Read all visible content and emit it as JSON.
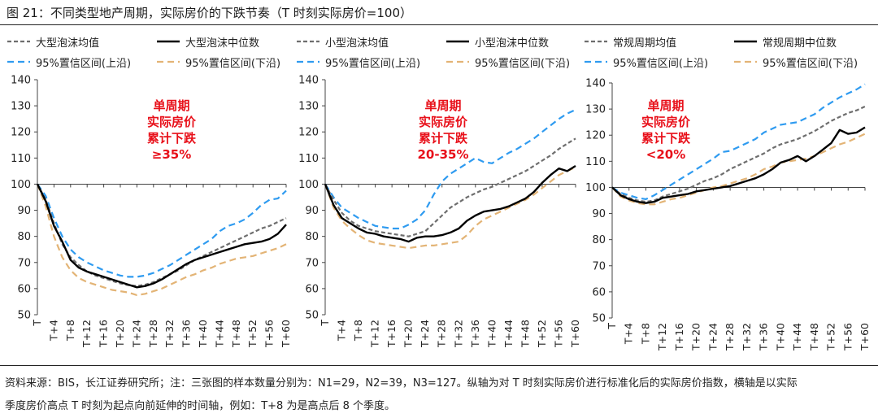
{
  "figure_title": "图 21：不同类型地产周期，实际房价的下跌节奏（T 时刻实际房价=100）",
  "footnote": {
    "line1": "资料来源：BIS，长江证券研究所；注：三张图的样本数量分别为：N1=29，N2=39，N3=127。纵轴为对 T 时刻实际房价进行标准化后的实际房价指数，横轴是以实际",
    "line2": "季度房价高点 T 时刻为起点向前延伸的时间轴，例如：T+8 为是高点后 8 个季度。"
  },
  "colors": {
    "mean": "#6e6e6e",
    "median": "#000000",
    "upper": "#2f9bf0",
    "lower": "#e3b476",
    "annotation": "#e8101a"
  },
  "chart_data": [
    {
      "type": "line",
      "name": "large-bubble",
      "annotation": [
        "单周期",
        "实际房价",
        "累计下跌",
        "≥35%"
      ],
      "legend": [
        "大型泡沫均值",
        "大型泡沫中位数",
        "95%置信区间(上沿)",
        "95%置信区间(下沿)"
      ],
      "ylim": [
        50,
        140
      ],
      "yticks": [
        50,
        60,
        70,
        80,
        90,
        100,
        110,
        120,
        130,
        140
      ],
      "xlim": [
        0,
        60
      ],
      "xtick_labels": [
        "T",
        "T+4",
        "T+8",
        "T+12",
        "T+16",
        "T+20",
        "T+24",
        "T+28",
        "T+32",
        "T+36",
        "T+40",
        "T+44",
        "T+48",
        "T+52",
        "T+56",
        "T+60"
      ],
      "x": [
        0,
        2,
        4,
        6,
        8,
        10,
        12,
        14,
        16,
        18,
        20,
        22,
        24,
        26,
        28,
        30,
        32,
        34,
        36,
        38,
        40,
        42,
        44,
        46,
        48,
        50,
        52,
        54,
        56,
        58,
        60
      ],
      "series": [
        {
          "name": "大型泡沫均值",
          "role": "mean",
          "values": [
            100,
            94,
            85,
            77,
            72,
            69,
            66.5,
            65,
            64,
            63,
            62,
            61.3,
            61,
            61.5,
            62.5,
            64,
            65.5,
            67,
            69,
            71,
            72.5,
            74,
            75.5,
            77,
            78.5,
            80,
            81.5,
            83,
            84,
            85.5,
            87
          ]
        },
        {
          "name": "大型泡沫中位数",
          "role": "median",
          "values": [
            100,
            93.5,
            84,
            78,
            71,
            68,
            66.5,
            65.5,
            64.5,
            63.5,
            62.5,
            61.5,
            60.5,
            61,
            62,
            63.5,
            65.5,
            67.5,
            69.5,
            71,
            72,
            73,
            74,
            75,
            76,
            77,
            77.5,
            78,
            79,
            81,
            84.5
          ]
        },
        {
          "name": "95%置信区间(上沿)",
          "role": "upper",
          "values": [
            100,
            95.5,
            87,
            80,
            75,
            72,
            70,
            68.5,
            67,
            66,
            65,
            64.5,
            64.5,
            65,
            66,
            67.5,
            69,
            71,
            73,
            75,
            77,
            79,
            82,
            84,
            85,
            86.5,
            89,
            92,
            94,
            94.5,
            97.5
          ]
        },
        {
          "name": "95%置信区间(下沿)",
          "role": "lower",
          "values": [
            100,
            91.5,
            80,
            72,
            67,
            64,
            62.5,
            61.5,
            60.5,
            59.5,
            59,
            58.5,
            57.5,
            58,
            59,
            60,
            61.5,
            63,
            64.5,
            65.5,
            67,
            68,
            69.5,
            70.5,
            71.5,
            72,
            72.5,
            73.5,
            74.5,
            75.5,
            77
          ]
        }
      ]
    },
    {
      "type": "line",
      "name": "small-bubble",
      "annotation": [
        "单周期",
        "实际房价",
        "累计下跌",
        "20-35%"
      ],
      "legend": [
        "小型泡沫均值",
        "小型泡沫中位数",
        "95%置信区间(上沿)",
        "95%置信区间(下沿)"
      ],
      "ylim": [
        50,
        140
      ],
      "yticks": [
        50,
        60,
        70,
        80,
        90,
        100,
        110,
        120,
        130,
        140
      ],
      "xlim": [
        0,
        60
      ],
      "xtick_labels": [
        "T",
        "T+4",
        "T+8",
        "T+12",
        "T+16",
        "T+20",
        "T+24",
        "T+28",
        "T+32",
        "T+36",
        "T+40",
        "T+44",
        "T+48",
        "T+52",
        "T+56",
        "T+60"
      ],
      "x": [
        0,
        2,
        4,
        6,
        8,
        10,
        12,
        14,
        16,
        18,
        20,
        22,
        24,
        26,
        28,
        30,
        32,
        34,
        36,
        38,
        40,
        42,
        44,
        46,
        48,
        50,
        52,
        54,
        56,
        58,
        60
      ],
      "series": [
        {
          "name": "小型泡沫均值",
          "role": "mean",
          "values": [
            100,
            94,
            89,
            86,
            84,
            83,
            82,
            81.5,
            81,
            80.5,
            80,
            81,
            82,
            85,
            88,
            91,
            93,
            95,
            96.5,
            98,
            99,
            100.5,
            102,
            103.5,
            105,
            107,
            109,
            111,
            113.5,
            115.5,
            117.5
          ]
        },
        {
          "name": "小型泡沫中位数",
          "role": "median",
          "values": [
            100,
            92,
            87,
            85,
            83,
            81.5,
            81,
            80,
            79.5,
            79,
            78,
            79.5,
            80,
            80,
            80.5,
            81.5,
            83,
            86,
            88,
            89.5,
            90,
            90.5,
            91.5,
            93,
            94.5,
            97,
            100.5,
            103.5,
            106,
            105,
            107
          ]
        },
        {
          "name": "95%置信区间(上沿)",
          "role": "upper",
          "values": [
            100,
            95,
            91,
            89,
            87,
            85.5,
            84,
            83.5,
            83,
            83,
            84.5,
            86.5,
            90,
            96,
            101,
            104,
            106,
            108,
            110,
            108.5,
            108,
            110,
            112,
            113.5,
            115.5,
            117.5,
            120,
            122.5,
            125,
            127,
            128.5
          ]
        },
        {
          "name": "95%置信区间(下沿)",
          "role": "lower",
          "values": [
            100,
            91,
            86,
            83,
            80.5,
            78.5,
            77.5,
            77,
            76.5,
            76,
            75.5,
            76,
            76.5,
            76.5,
            77,
            77.5,
            78,
            80.5,
            84,
            86.5,
            88,
            89.5,
            91,
            92.5,
            94,
            96,
            98.5,
            101,
            103.5,
            105,
            106.5
          ]
        }
      ]
    },
    {
      "type": "line",
      "name": "regular-cycle",
      "annotation": [
        "单周期",
        "实际房价",
        "累计下跌",
        "<20%"
      ],
      "legend": [
        "常规周期均值",
        "常规周期中位数",
        "95%置信区间(上沿)",
        "95%置信区间(下沿)"
      ],
      "ylim": [
        50,
        140
      ],
      "yticks": [
        50,
        60,
        70,
        80,
        90,
        100,
        110,
        120,
        130,
        140
      ],
      "xlim": [
        0,
        60
      ],
      "xtick_labels": [
        "T",
        "T+4",
        "T+8",
        "T+12",
        "T+16",
        "T+20",
        "T+24",
        "T+28",
        "T+32",
        "T+36",
        "T+40",
        "T+44",
        "T+48",
        "T+52",
        "T+56",
        "T+60"
      ],
      "x": [
        0,
        2,
        4,
        6,
        8,
        10,
        12,
        14,
        16,
        18,
        20,
        22,
        24,
        26,
        28,
        30,
        32,
        34,
        36,
        38,
        40,
        42,
        44,
        46,
        48,
        50,
        52,
        54,
        56,
        58,
        60
      ],
      "series": [
        {
          "name": "常规周期均值",
          "role": "mean",
          "values": [
            100,
            97.5,
            96,
            95,
            94.5,
            95,
            96.5,
            97.5,
            98.5,
            99.5,
            101,
            102.5,
            103.5,
            105,
            107,
            108.5,
            110,
            111.5,
            113,
            115,
            116.5,
            117.5,
            118.5,
            120,
            121.5,
            123.5,
            125.5,
            127,
            128.5,
            129.5,
            131
          ]
        },
        {
          "name": "常规周期中位数",
          "role": "median",
          "values": [
            100,
            97,
            95.5,
            94.5,
            94,
            94.5,
            96,
            96.5,
            97,
            97.5,
            98.5,
            99,
            99.5,
            100,
            100.5,
            101.5,
            102.5,
            103.5,
            105,
            107,
            109.5,
            110.5,
            112,
            110,
            112,
            114.5,
            117,
            122,
            120.5,
            121,
            123
          ]
        },
        {
          "name": "95%置信区间(上沿)",
          "role": "upper",
          "values": [
            100,
            98,
            97,
            96,
            95.5,
            97,
            99,
            101,
            103,
            105,
            107,
            109,
            111,
            113.5,
            114,
            115.5,
            117,
            118.5,
            121,
            122.5,
            124,
            124.5,
            125,
            126.5,
            128,
            130.5,
            132.5,
            134.5,
            136,
            137.5,
            139.5
          ]
        },
        {
          "name": "95%置信区间(下沿)",
          "role": "lower",
          "values": [
            100,
            96.5,
            95,
            94,
            93.5,
            93.5,
            94.5,
            95.5,
            96,
            97,
            98,
            99,
            100,
            100.5,
            101.5,
            102.5,
            103.5,
            105,
            107,
            108,
            109.5,
            110,
            110.5,
            111,
            112,
            113.5,
            115,
            116.5,
            117.5,
            119,
            120.5
          ]
        }
      ]
    }
  ]
}
